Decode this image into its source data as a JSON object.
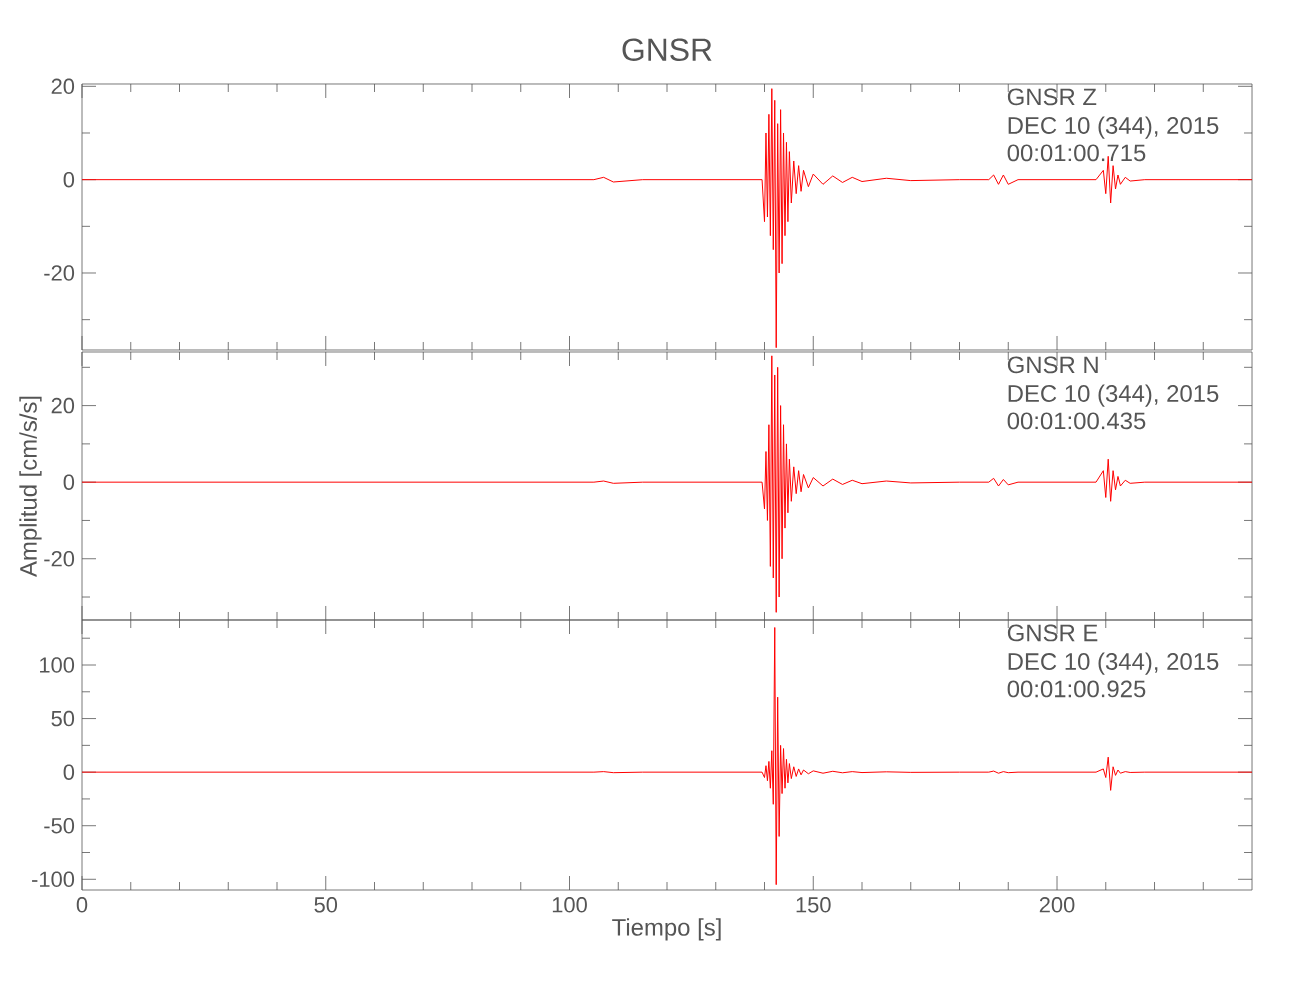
{
  "chart_data": [
    {
      "type": "line",
      "title": "GNSR",
      "annotations": [
        "GNSR   Z",
        "DEC 10 (344), 2015",
        "00:01:00.715"
      ],
      "color": "#ff0000",
      "tick_labels": "y",
      "x": [
        0,
        20,
        40,
        60,
        80,
        100,
        105,
        107,
        109,
        115,
        130,
        139.5,
        140,
        140.3,
        140.6,
        140.9,
        141.2,
        141.5,
        141.8,
        142.1,
        142.4,
        142.7,
        143,
        143.3,
        143.6,
        143.9,
        144.2,
        144.5,
        144.8,
        145.1,
        145.5,
        146,
        146.5,
        147,
        147.5,
        148,
        149,
        150,
        152,
        154,
        156,
        158,
        160,
        165,
        170,
        180,
        186,
        187,
        188,
        189,
        190,
        192,
        200,
        208,
        209.5,
        210,
        210.5,
        211,
        211.5,
        212,
        212.5,
        213,
        214,
        215,
        218,
        225,
        232,
        240
      ],
      "values": [
        0,
        0,
        0,
        0,
        0,
        0,
        0,
        0.5,
        -0.5,
        0,
        0,
        0,
        -9,
        10,
        -8,
        14,
        -12,
        19.5,
        -15,
        17,
        -36,
        12,
        -20,
        15,
        -18,
        10,
        -12,
        8,
        -9,
        6,
        -5,
        4,
        -3,
        3,
        -2.5,
        2,
        -1.5,
        1.2,
        -1,
        0.8,
        -0.6,
        0.5,
        -0.4,
        0.3,
        -0.2,
        0,
        0,
        1,
        -1,
        1,
        -1,
        0,
        0,
        0,
        2,
        -3,
        5,
        -5,
        3,
        -2,
        1,
        -1,
        0.5,
        -0.3,
        0,
        0,
        0,
        0
      ],
      "xlim": [
        0,
        240
      ],
      "ylim": [
        -36.5,
        20.5
      ],
      "xticks": [
        0,
        {
          "value": 10,
          "label": null
        },
        {
          "value": 20,
          "label": null
        },
        {
          "value": 30,
          "label": null
        },
        {
          "value": 40,
          "label": null
        },
        50,
        {
          "value": 60,
          "label": null
        },
        {
          "value": 70,
          "label": null
        },
        {
          "value": 80,
          "label": null
        },
        {
          "value": 90,
          "label": null
        },
        100,
        {
          "value": 110,
          "label": null
        },
        {
          "value": 120,
          "label": null
        },
        {
          "value": 130,
          "label": null
        },
        {
          "value": 140,
          "label": null
        },
        150,
        {
          "value": 160,
          "label": null
        },
        {
          "value": 170,
          "label": null
        },
        {
          "value": 180,
          "label": null
        },
        {
          "value": 190,
          "label": null
        },
        200,
        {
          "value": 210,
          "label": null
        },
        {
          "value": 220,
          "label": null
        },
        {
          "value": 230,
          "label": null
        }
      ],
      "yticks": [
        {
          "value": -30,
          "label": null
        },
        -20,
        {
          "value": -10,
          "label": null
        },
        0,
        {
          "value": 10,
          "label": null
        },
        20
      ]
    },
    {
      "type": "line",
      "ylabel": "Amplitud [cm/s/s]",
      "annotations": [
        "GNSR   N",
        "DEC 10 (344), 2015",
        "00:01:00.435"
      ],
      "color": "#ff0000",
      "tick_labels": "y",
      "x": [
        0,
        20,
        40,
        60,
        80,
        100,
        105,
        107,
        109,
        115,
        130,
        139.5,
        140,
        140.3,
        140.6,
        140.9,
        141.2,
        141.5,
        141.8,
        142.1,
        142.4,
        142.7,
        143,
        143.3,
        143.6,
        143.9,
        144.2,
        144.5,
        144.8,
        145.1,
        145.5,
        146,
        146.5,
        147,
        147.5,
        148,
        149,
        150,
        152,
        154,
        156,
        158,
        160,
        165,
        170,
        180,
        186,
        187,
        188,
        189,
        190,
        192,
        200,
        208,
        209.5,
        210,
        210.5,
        211,
        211.5,
        212,
        212.5,
        213,
        214,
        215,
        218,
        225,
        232,
        240
      ],
      "values": [
        0,
        0,
        0,
        0,
        0,
        0,
        0,
        0.3,
        -0.3,
        0,
        0,
        0,
        -7,
        8,
        -10,
        15,
        -22,
        33,
        -25,
        28,
        -34,
        30,
        -30,
        20,
        -20,
        15,
        -12,
        10,
        -8,
        6,
        -5,
        4,
        -3,
        3,
        -2.5,
        2,
        -1.5,
        1.2,
        -1,
        0.8,
        -0.6,
        0.5,
        -0.4,
        0.3,
        -0.2,
        0,
        0,
        1,
        -1,
        0.7,
        -0.7,
        0,
        0,
        0,
        3,
        -4,
        6,
        -5,
        3,
        -2,
        1.5,
        -1,
        0.5,
        -0.3,
        0,
        0,
        0,
        0
      ],
      "xlim": [
        0,
        240
      ],
      "ylim": [
        -36,
        34
      ],
      "xticks": [
        0,
        {
          "value": 10,
          "label": null
        },
        {
          "value": 20,
          "label": null
        },
        {
          "value": 30,
          "label": null
        },
        {
          "value": 40,
          "label": null
        },
        50,
        {
          "value": 60,
          "label": null
        },
        {
          "value": 70,
          "label": null
        },
        {
          "value": 80,
          "label": null
        },
        {
          "value": 90,
          "label": null
        },
        100,
        {
          "value": 110,
          "label": null
        },
        {
          "value": 120,
          "label": null
        },
        {
          "value": 130,
          "label": null
        },
        {
          "value": 140,
          "label": null
        },
        150,
        {
          "value": 160,
          "label": null
        },
        {
          "value": 170,
          "label": null
        },
        {
          "value": 180,
          "label": null
        },
        {
          "value": 190,
          "label": null
        },
        200,
        {
          "value": 210,
          "label": null
        },
        {
          "value": 220,
          "label": null
        },
        {
          "value": 230,
          "label": null
        }
      ],
      "yticks": [
        {
          "value": -30,
          "label": null
        },
        -20,
        {
          "value": -10,
          "label": null
        },
        0,
        {
          "value": 10,
          "label": null
        },
        20,
        {
          "value": 30,
          "label": null
        }
      ]
    },
    {
      "type": "line",
      "xlabel": "Tiempo [s]",
      "annotations": [
        "GNSR   E",
        "DEC 10 (344), 2015",
        "00:01:00.925"
      ],
      "color": "#ff0000",
      "x": [
        0,
        20,
        40,
        60,
        80,
        100,
        105,
        107,
        109,
        115,
        130,
        139.5,
        140,
        140.3,
        140.6,
        140.9,
        141.2,
        141.5,
        141.8,
        142.1,
        142.4,
        142.7,
        143,
        143.3,
        143.6,
        143.9,
        144.2,
        144.5,
        144.8,
        145.1,
        145.5,
        146,
        146.5,
        147,
        147.5,
        148,
        149,
        150,
        152,
        154,
        156,
        158,
        160,
        165,
        170,
        180,
        186,
        187,
        188,
        189,
        190,
        192,
        200,
        208,
        209.5,
        210,
        210.5,
        211,
        211.5,
        212,
        212.5,
        213,
        214,
        215,
        218,
        225,
        232,
        240
      ],
      "values": [
        0,
        0,
        0,
        0,
        0,
        0,
        0,
        0.5,
        -0.5,
        0,
        0,
        0,
        -5,
        6,
        -8,
        10,
        -15,
        20,
        -30,
        135,
        -105,
        70,
        -60,
        25,
        -20,
        22,
        -15,
        12,
        -10,
        8,
        -6,
        5,
        -4,
        3,
        -2.5,
        2,
        -1.5,
        1.2,
        -1,
        0.8,
        -0.6,
        0.5,
        -0.4,
        0.3,
        -0.2,
        0,
        0,
        1,
        -1,
        0.5,
        -0.5,
        0,
        0,
        0,
        3,
        -5,
        14,
        -17,
        5,
        -3,
        2,
        -1,
        0.5,
        -0.3,
        0,
        0,
        0,
        0
      ],
      "xlim": [
        0,
        240
      ],
      "ylim": [
        -110,
        142
      ],
      "xticks": [
        0,
        {
          "value": 10,
          "label": null
        },
        {
          "value": 20,
          "label": null
        },
        {
          "value": 30,
          "label": null
        },
        {
          "value": 40,
          "label": null
        },
        50,
        {
          "value": 60,
          "label": null
        },
        {
          "value": 70,
          "label": null
        },
        {
          "value": 80,
          "label": null
        },
        {
          "value": 90,
          "label": null
        },
        100,
        {
          "value": 110,
          "label": null
        },
        {
          "value": 120,
          "label": null
        },
        {
          "value": 130,
          "label": null
        },
        {
          "value": 140,
          "label": null
        },
        150,
        {
          "value": 160,
          "label": null
        },
        {
          "value": 170,
          "label": null
        },
        {
          "value": 180,
          "label": null
        },
        {
          "value": 190,
          "label": null
        },
        200,
        {
          "value": 210,
          "label": null
        },
        {
          "value": 220,
          "label": null
        },
        {
          "value": 230,
          "label": null
        }
      ],
      "yticks": [
        -100,
        {
          "value": -75,
          "label": null
        },
        -50,
        {
          "value": -25,
          "label": null
        },
        0,
        {
          "value": 25,
          "label": null
        },
        50,
        {
          "value": 75,
          "label": null
        },
        100,
        {
          "value": 125,
          "label": null
        }
      ]
    }
  ]
}
